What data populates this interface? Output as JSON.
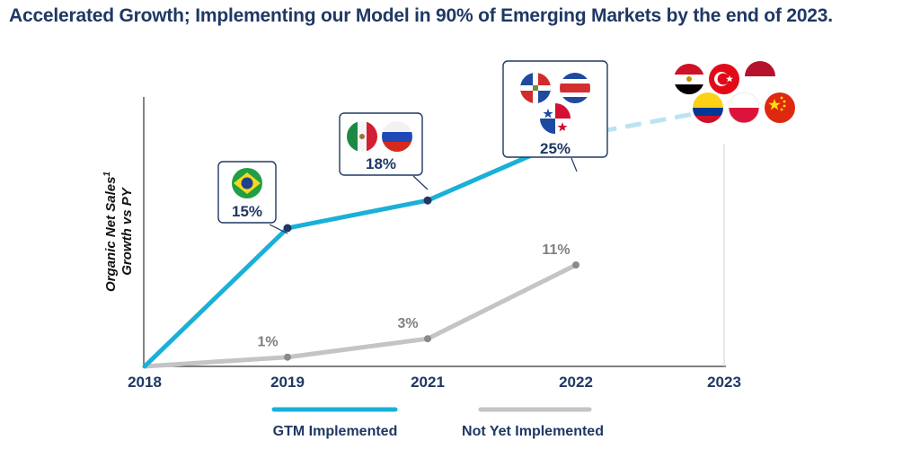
{
  "header": {
    "title": "Accelerated Growth; Implementing our Model in 90% of Emerging Markets by the end of 2023."
  },
  "colors": {
    "gtm": "#1ab0d8",
    "gtm_projection": "#b9e5f3",
    "not_yet": "#c4c4c4",
    "navy": "#1f3864",
    "grey_text": "#808080"
  },
  "chart_data": {
    "type": "line",
    "x": [
      "2018",
      "2019",
      "2021",
      "2022",
      "2023"
    ],
    "ylabel_line1": "Organic Net Sales",
    "ylabel_sup": "1",
    "ylabel_line2": "Growth vs PY",
    "series": [
      {
        "name": "GTM Implemented",
        "values": [
          0,
          15,
          18,
          25,
          null
        ],
        "labels": [
          "",
          "15%",
          "18%",
          "25%",
          ""
        ],
        "projection_to": 28
      },
      {
        "name": "Not Yet Implemented",
        "values": [
          0,
          1,
          3,
          11,
          null
        ],
        "labels": [
          "",
          "1%",
          "3%",
          "11%",
          ""
        ]
      }
    ],
    "ylim": [
      0,
      30
    ],
    "legend": "bottom",
    "annotations": [
      {
        "x": "2019",
        "flags": [
          "brazil-flag"
        ]
      },
      {
        "x": "2021",
        "flags": [
          "mexico-flag",
          "russia-flag"
        ]
      },
      {
        "x": "2022",
        "flags": [
          "dominican-republic-flag",
          "costa-rica-flag",
          "panama-flag"
        ]
      },
      {
        "x": "2023",
        "flags": [
          "egypt-flag",
          "turkey-flag",
          "indonesia-flag",
          "colombia-flag",
          "poland-flag",
          "china-flag"
        ]
      }
    ]
  }
}
